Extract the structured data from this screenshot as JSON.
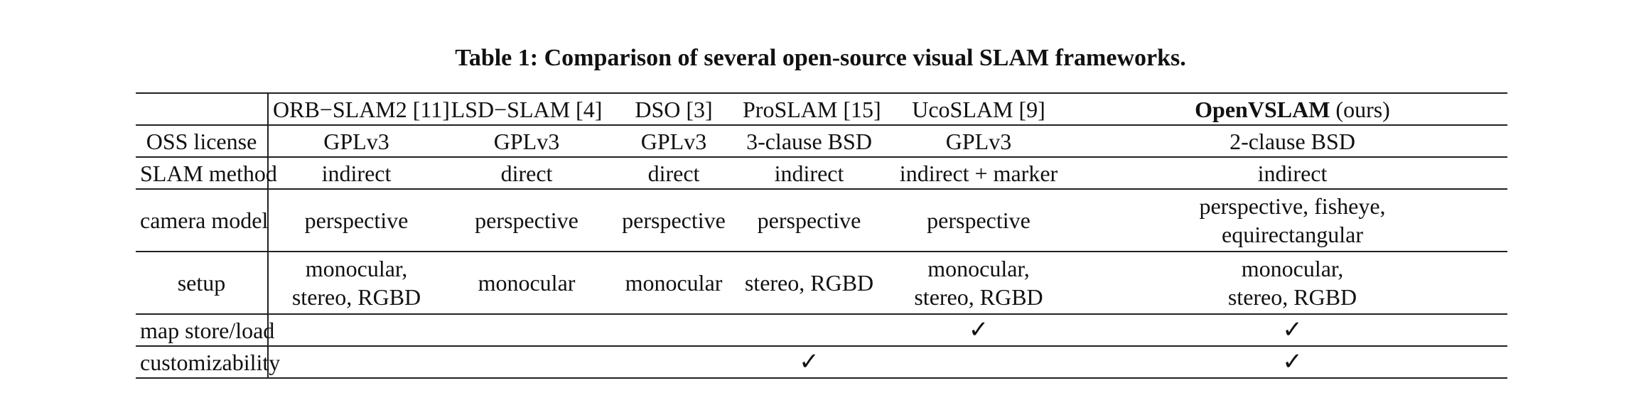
{
  "caption": "Table 1: Comparison of several open-source visual SLAM frameworks.",
  "header": {
    "blank": "",
    "columns": [
      {
        "name": "ORB−SLAM2 [11]"
      },
      {
        "name": "LSD−SLAM [4]"
      },
      {
        "name": "DSO [3]"
      },
      {
        "name": "ProSLAM [15]"
      },
      {
        "name": "UcoSLAM [9]"
      },
      {
        "name_bold": "OpenVSLAM",
        "suffix": " (ours)"
      }
    ]
  },
  "rows": [
    {
      "label": "OSS license",
      "cells": [
        {
          "l1": "GPLv3"
        },
        {
          "l1": "GPLv3"
        },
        {
          "l1": "GPLv3"
        },
        {
          "l1": "3-clause BSD"
        },
        {
          "l1": "GPLv3"
        },
        {
          "l1": "2-clause BSD"
        }
      ]
    },
    {
      "label": "SLAM method",
      "cells": [
        {
          "l1": "indirect"
        },
        {
          "l1": "direct"
        },
        {
          "l1": "direct"
        },
        {
          "l1": "indirect"
        },
        {
          "l1": "indirect + marker"
        },
        {
          "l1": "indirect"
        }
      ]
    },
    {
      "label": "camera model",
      "cells": [
        {
          "l1": "perspective"
        },
        {
          "l1": "perspective"
        },
        {
          "l1": "perspective"
        },
        {
          "l1": "perspective"
        },
        {
          "l1": "perspective"
        },
        {
          "l1": "perspective, fisheye,",
          "l2": "equirectangular"
        }
      ]
    },
    {
      "label": "setup",
      "cells": [
        {
          "l1": "monocular,",
          "l2": "stereo, RGBD"
        },
        {
          "l1": "monocular"
        },
        {
          "l1": "monocular"
        },
        {
          "l1": "stereo, RGBD"
        },
        {
          "l1": "monocular,",
          "l2": "stereo, RGBD"
        },
        {
          "l1": "monocular,",
          "l2": "stereo, RGBD"
        }
      ]
    },
    {
      "label": "map store/load",
      "cells": [
        {
          "l1": ""
        },
        {
          "l1": ""
        },
        {
          "l1": ""
        },
        {
          "l1": ""
        },
        {
          "l1": "✓"
        },
        {
          "l1": "✓"
        }
      ]
    },
    {
      "label": "customizability",
      "cells": [
        {
          "l1": ""
        },
        {
          "l1": ""
        },
        {
          "l1": ""
        },
        {
          "l1": "✓"
        },
        {
          "l1": ""
        },
        {
          "l1": "✓"
        }
      ]
    }
  ]
}
